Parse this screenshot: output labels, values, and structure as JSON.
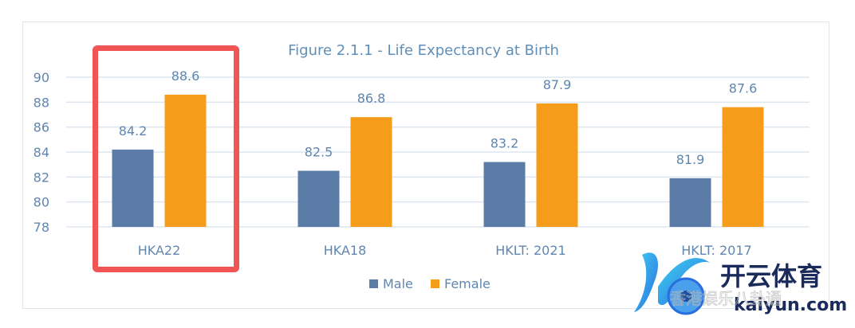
{
  "chart_data": {
    "type": "bar",
    "title": "Figure 2.1.1 - Life Expectancy at Birth",
    "categories": [
      "HKA22",
      "HKA18",
      "HKLT: 2021",
      "HKLT: 2017"
    ],
    "series": [
      {
        "name": "Male",
        "values": [
          84.2,
          82.5,
          83.2,
          81.9
        ],
        "color": "#5a7ca6"
      },
      {
        "name": "Female",
        "values": [
          88.6,
          86.8,
          87.9,
          87.6
        ],
        "color": "#f59c1a"
      }
    ],
    "ylim": [
      78,
      90
    ],
    "yticks": [
      78,
      80,
      82,
      84,
      86,
      88,
      90
    ],
    "grid": true,
    "legend": "bottom",
    "xlabel": "",
    "ylabel": "",
    "highlight": {
      "category": "HKA22",
      "color": "#f05454"
    }
  },
  "watermark": {
    "text_cn": "开云体育",
    "text_en": "kaiyun.com",
    "subtext": "香港娱乐八卦通"
  }
}
